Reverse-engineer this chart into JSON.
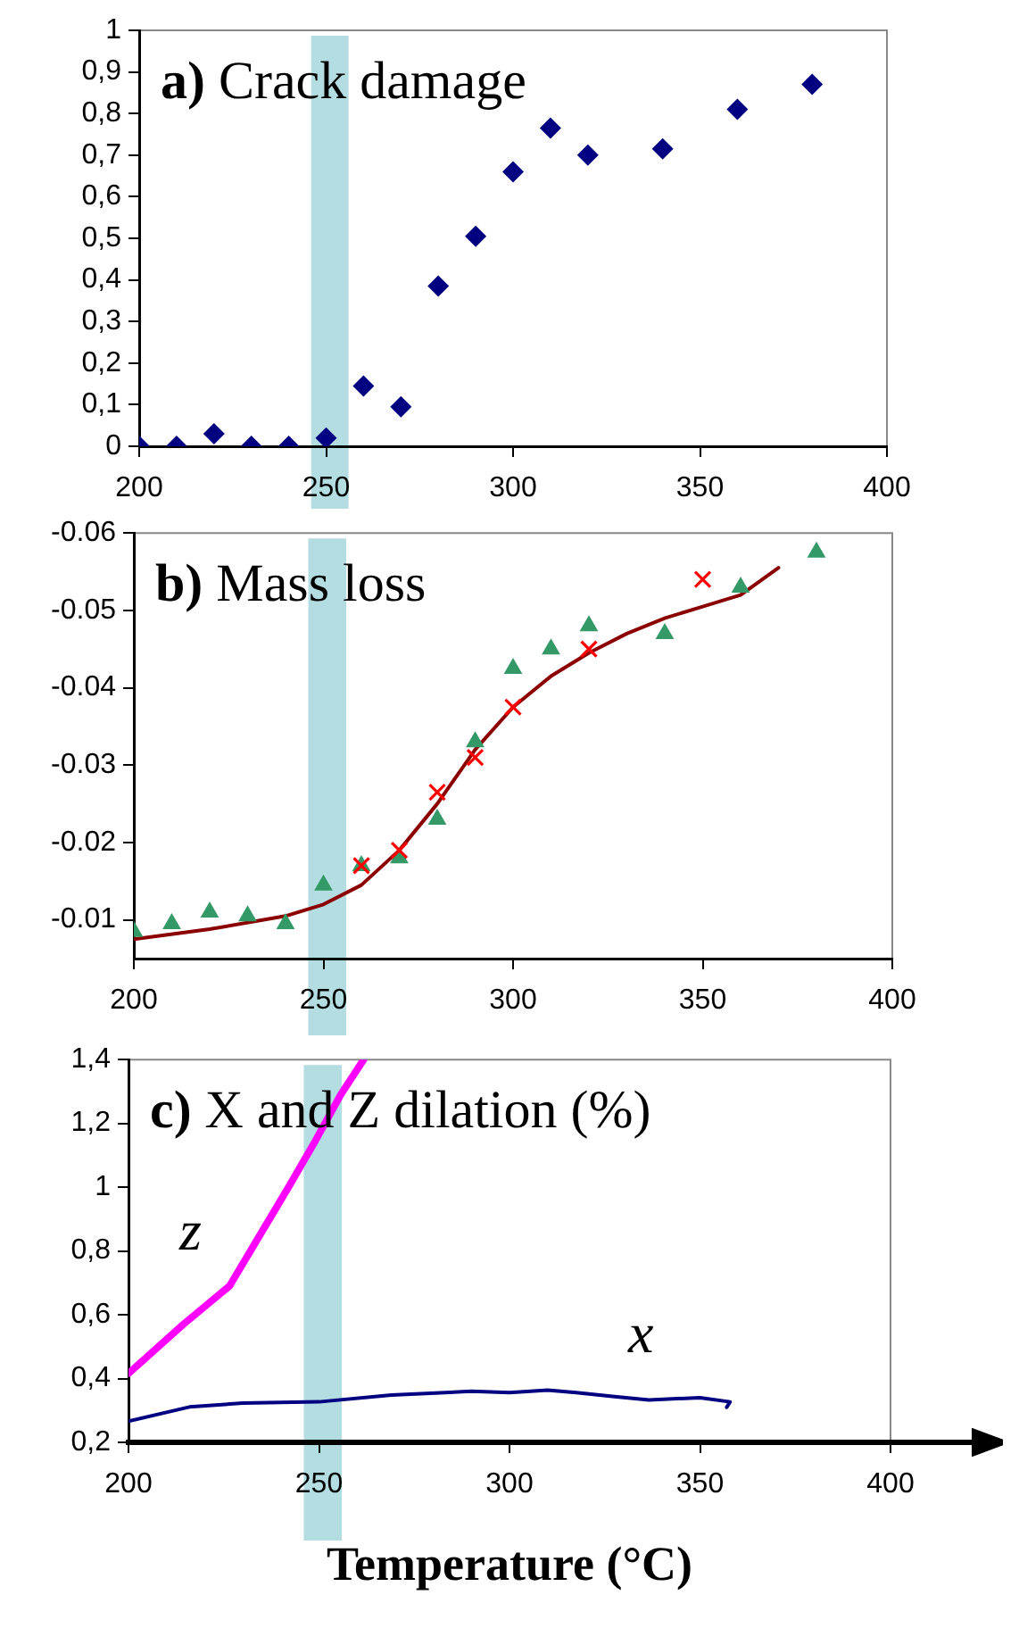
{
  "chart_data": [
    {
      "type": "scatter",
      "title": "a) Crack damage",
      "marker": "diamond",
      "x": [
        200,
        210,
        220,
        230,
        240,
        250,
        260,
        270,
        280,
        290,
        300,
        310,
        320,
        340,
        360,
        380
      ],
      "series": [
        {
          "color": "#000080",
          "values": [
            0,
            0,
            0.03,
            0,
            0,
            0.02,
            0.145,
            0.095,
            0.385,
            0.505,
            0.66,
            0.765,
            0.7,
            0.715,
            0.81,
            0.87
          ]
        }
      ],
      "xlim": [
        200,
        400
      ],
      "xticks": [
        200,
        250,
        300,
        350,
        400
      ],
      "ylim": [
        0,
        1
      ],
      "yticks": [
        0,
        {
          "value": 0.1,
          "label": "0,1"
        },
        {
          "value": 0.2,
          "label": "0,2"
        },
        {
          "value": 0.3,
          "label": "0,3"
        },
        {
          "value": 0.4,
          "label": "0,4"
        },
        {
          "value": 0.5,
          "label": "0,5"
        },
        {
          "value": 0.6,
          "label": "0,6"
        },
        {
          "value": 0.7,
          "label": "0,7"
        },
        {
          "value": 0.8,
          "label": "0,8"
        },
        {
          "value": 0.9,
          "label": "0,9"
        },
        1
      ],
      "bands": [
        {
          "axis": "x",
          "from": 246,
          "to": 256,
          "color": "#b4dde2"
        }
      ]
    },
    {
      "type": "scatter",
      "title": "b) Mass loss",
      "series": [
        {
          "type": "line",
          "color": "#8b0000",
          "marker": "none",
          "x": [
            200,
            220,
            240,
            250,
            260,
            270,
            280,
            290,
            300,
            310,
            320,
            330,
            340,
            350,
            360,
            370
          ],
          "values": [
            -0.0075,
            -0.0088,
            -0.0105,
            -0.012,
            -0.0145,
            -0.019,
            -0.025,
            -0.032,
            -0.0375,
            -0.0415,
            -0.0445,
            -0.047,
            -0.049,
            -0.0505,
            -0.052,
            -0.0555
          ]
        },
        {
          "color": "#339966",
          "marker": "triangle",
          "x": [
            200,
            210,
            220,
            230,
            240,
            250,
            260,
            270,
            280,
            290,
            300,
            310,
            320,
            340,
            360,
            380
          ],
          "values": [
            -0.0085,
            -0.0095,
            -0.011,
            -0.0105,
            -0.0095,
            -0.0145,
            -0.017,
            -0.018,
            -0.023,
            -0.033,
            -0.0425,
            -0.045,
            -0.048,
            -0.047,
            -0.053,
            -0.0575
          ]
        },
        {
          "color": "#ff0000",
          "marker": "cross",
          "x": [
            260,
            270,
            280,
            290,
            300,
            320,
            350
          ],
          "values": [
            -0.017,
            -0.019,
            -0.0265,
            -0.031,
            -0.0375,
            -0.045,
            -0.054
          ]
        }
      ],
      "xlim": [
        200,
        400
      ],
      "xticks": [
        200,
        250,
        300,
        350,
        400
      ],
      "ylim": [
        -0.005,
        -0.06
      ],
      "yticks": [
        -0.01,
        -0.02,
        -0.03,
        -0.04,
        -0.05,
        -0.06
      ],
      "bands": [
        {
          "axis": "x",
          "from": 246,
          "to": 256,
          "color": "#b4dde2"
        }
      ]
    },
    {
      "type": "line",
      "title": "c) X and Z dilation (%)",
      "xlabel": "Temperature (°C)",
      "marker": "none",
      "series": [
        {
          "name": "z",
          "color": "#ff00ff",
          "x": [
            200,
            214.4,
            226.5,
            235,
            242,
            248.8,
            255.7,
            261.7
          ],
          "values": [
            0.416,
            0.57,
            0.69,
            0.86,
            1.0,
            1.14,
            1.29,
            1.4
          ]
        },
        {
          "name": "x",
          "color": "#000080",
          "x": [
            200,
            216,
            230,
            250,
            269,
            290,
            300,
            310,
            317.5,
            327,
            336.6,
            350,
            357.9,
            357
          ],
          "values": [
            0.266,
            0.311,
            0.323,
            0.327,
            0.348,
            0.36,
            0.356,
            0.364,
            0.356,
            0.344,
            0.333,
            0.34,
            0.327,
            0.31
          ]
        }
      ],
      "xlim": [
        200,
        400
      ],
      "xticks": [
        200,
        250,
        300,
        350,
        400
      ],
      "ylim": [
        0.2,
        1.4
      ],
      "yticks": [
        {
          "value": 0.2,
          "label": "0,2"
        },
        {
          "value": 0.4,
          "label": "0,4"
        },
        {
          "value": 0.6,
          "label": "0,6"
        },
        {
          "value": 0.8,
          "label": "0,8"
        },
        1,
        {
          "value": 1.2,
          "label": "1,2"
        },
        {
          "value": 1.4,
          "label": "1,4"
        }
      ],
      "bands": [
        {
          "axis": "x",
          "from": 246,
          "to": 256,
          "color": "#b4dde2"
        }
      ]
    }
  ]
}
